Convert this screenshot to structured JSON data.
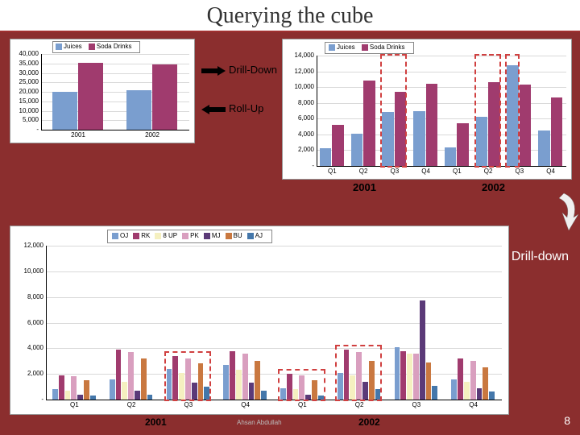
{
  "title": "Querying the cube",
  "page_number": "8",
  "colors": {
    "bg": "#8b2e2e",
    "juices": "#7a9ecf",
    "soda": "#a03b6e",
    "oj": "#7a9ecf",
    "rk": "#a03b6e",
    "sevenup": "#f5f0c0",
    "pk": "#d99fbf",
    "mj": "#5b3a78",
    "bu": "#c97840",
    "aj": "#4477aa",
    "dashed": "#d04040"
  },
  "chart1": {
    "type": "bar",
    "legend": [
      "Juices",
      "Soda Drinks"
    ],
    "legend_colors": [
      "#7a9ecf",
      "#a03b6e"
    ],
    "categories": [
      "2001",
      "2002"
    ],
    "series": {
      "Juices": [
        20000,
        21000
      ],
      "Soda Drinks": [
        35500,
        34500
      ]
    },
    "ylim": [
      0,
      40000
    ],
    "ytick_step": 5000,
    "bar_width": 0.35
  },
  "chart2": {
    "type": "bar",
    "legend": [
      "Juices",
      "Soda Drinks"
    ],
    "legend_colors": [
      "#7a9ecf",
      "#a03b6e"
    ],
    "year_groups": [
      "2001",
      "2002"
    ],
    "categories": [
      "Q1",
      "Q2",
      "Q3",
      "Q4",
      "Q1",
      "Q2",
      "Q3",
      "Q4"
    ],
    "series": {
      "Juices": [
        2200,
        4100,
        6800,
        7000,
        2400,
        6200,
        12800,
        4500
      ],
      "Soda Drinks": [
        5200,
        10800,
        9400,
        10400,
        5400,
        10600,
        10300,
        8700
      ]
    },
    "ylim": [
      0,
      14000
    ],
    "ytick_step": 2000,
    "bar_width": 0.4,
    "highlight_boxes": [
      {
        "quarter_index": 2,
        "series": "both"
      },
      {
        "quarter_index": 5,
        "series": "both"
      },
      {
        "quarter_index": 6,
        "series": "Juices"
      }
    ]
  },
  "chart3": {
    "type": "bar",
    "legend": [
      "OJ",
      "RK",
      "8 UP",
      "PK",
      "MJ",
      "BU",
      "AJ"
    ],
    "legend_colors": [
      "#7a9ecf",
      "#a03b6e",
      "#f5f0c0",
      "#d99fbf",
      "#5b3a78",
      "#c97840",
      "#4477aa"
    ],
    "year_groups": [
      "2001",
      "2002"
    ],
    "categories": [
      "Q1",
      "Q2",
      "Q3",
      "Q4",
      "Q1",
      "Q2",
      "Q3",
      "Q4"
    ],
    "series": {
      "OJ": [
        800,
        1600,
        2400,
        2700,
        900,
        2100,
        4100,
        1600
      ],
      "RK": [
        1900,
        3900,
        3400,
        3800,
        2000,
        3900,
        3800,
        3200
      ],
      "8 UP": [
        700,
        1400,
        2100,
        2300,
        800,
        1900,
        3600,
        1400
      ],
      "PK": [
        1800,
        3700,
        3200,
        3600,
        1900,
        3700,
        3600,
        3000
      ],
      "MJ": [
        400,
        700,
        1300,
        1300,
        400,
        1400,
        7700,
        900
      ],
      "BU": [
        1500,
        3200,
        2800,
        3000,
        1500,
        3000,
        2900,
        2500
      ],
      "AJ": [
        300,
        400,
        1000,
        700,
        300,
        800,
        1100,
        600
      ]
    },
    "ylim": [
      0,
      12000
    ],
    "ytick_step": 2000,
    "bar_width": 0.11,
    "highlight_boxes": [
      {
        "quarter_index": 2,
        "products": "all"
      },
      {
        "quarter_index": 4,
        "products": "all"
      },
      {
        "quarter_index": 5,
        "products": "all"
      }
    ]
  },
  "labels": {
    "drill_down": "Drill-Down",
    "roll_up": "Roll-Up",
    "drill_down2": "Drill-down",
    "y2001": "2001",
    "y2002": "2002",
    "watermark": "Ahsan Abdullah"
  }
}
